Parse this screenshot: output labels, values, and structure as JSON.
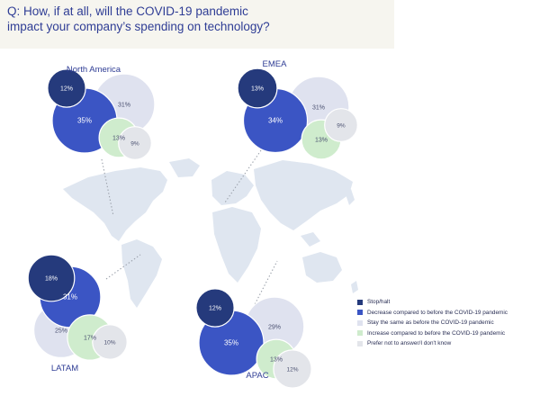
{
  "header": {
    "question_line1": "Q: How, if at all, will the COVID-19 pandemic",
    "question_line2": "impact your company’s spending on technology?"
  },
  "chart_data": {
    "type": "bubble",
    "title": "Q: How, if at all, will the COVID-19 pandemic impact your company’s spending on technology?",
    "categories": [
      "Stop/halt",
      "Decrease compared to before the COVID-19 pandemic",
      "Stay the same as before the COVID-19 pandemic",
      "Increase compared to before the COVID-19 pandemic",
      "Prefer not to answer/I don't know"
    ],
    "colors": [
      "#253a7c",
      "#3b55c4",
      "#dfe2ef",
      "#cfeccd",
      "#e3e5ea"
    ],
    "legend_position": "bottom-right",
    "regions": [
      {
        "name": "North America",
        "labels": [
          "12%",
          "35%",
          "31%",
          "13%",
          "9%"
        ],
        "values": [
          12,
          35,
          31,
          13,
          9
        ]
      },
      {
        "name": "EMEA",
        "labels": [
          "13%",
          "34%",
          "31%",
          "13%",
          "9%"
        ],
        "values": [
          13,
          34,
          31,
          13,
          9
        ]
      },
      {
        "name": "LATAM",
        "labels": [
          "18%",
          "31%",
          "25%",
          "17%",
          "10%"
        ],
        "values": [
          18,
          31,
          25,
          17,
          10
        ]
      },
      {
        "name": "APAC",
        "labels": [
          "12%",
          "35%",
          "29%",
          "13%",
          "12%"
        ],
        "values": [
          12,
          35,
          29,
          13,
          12
        ]
      }
    ]
  }
}
